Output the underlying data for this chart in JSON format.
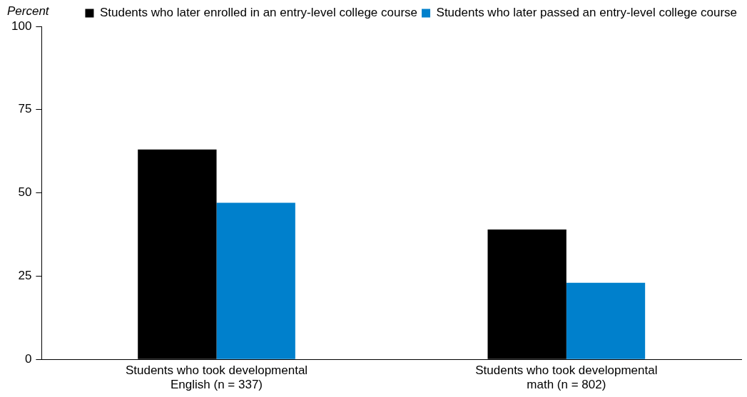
{
  "chart_data": {
    "type": "bar",
    "ylabel": "Percent",
    "categories": [
      "Students who took developmental English (n = 337)",
      "Students who took developmental math (n = 802)"
    ],
    "series": [
      {
        "name": "Students who later enrolled in an entry-level college course",
        "color": "#000000",
        "values": [
          63,
          39
        ]
      },
      {
        "name": "Students who later passed an entry-level college course",
        "color": "#0080cc",
        "values": [
          47,
          23
        ]
      }
    ],
    "ylim": [
      0,
      100
    ],
    "yticks": [
      0,
      25,
      50,
      75,
      100
    ],
    "grid": false,
    "legend": "top right"
  }
}
